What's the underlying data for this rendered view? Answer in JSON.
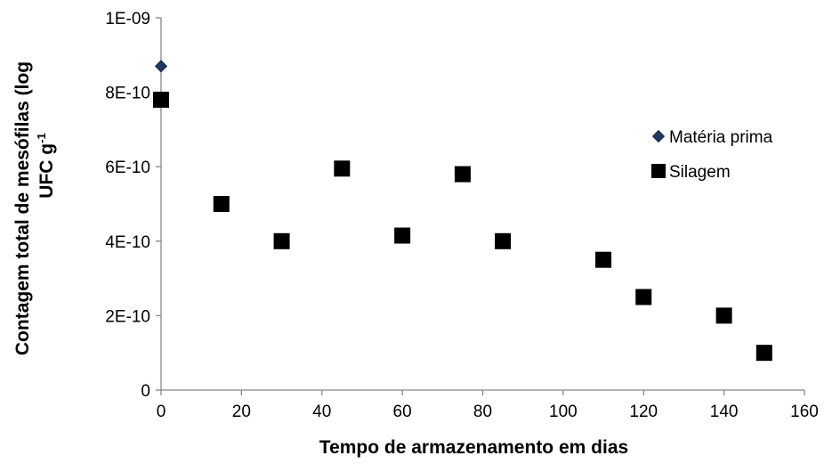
{
  "chart_data": {
    "type": "scatter",
    "xlabel": "Tempo de armazenamento em dias",
    "ylabel": {
      "line1": "Contagem total de mesófilas (log",
      "line2_base": "UFC g",
      "line2_sup": "-1"
    },
    "xlim": [
      0,
      160
    ],
    "ylim": [
      0,
      1e-09
    ],
    "x_ticks": [
      {
        "value": 0,
        "label": "0"
      },
      {
        "value": 20,
        "label": "20"
      },
      {
        "value": 40,
        "label": "40"
      },
      {
        "value": 60,
        "label": "60"
      },
      {
        "value": 80,
        "label": "80"
      },
      {
        "value": 100,
        "label": "100"
      },
      {
        "value": 120,
        "label": "120"
      },
      {
        "value": 140,
        "label": "140"
      },
      {
        "value": 160,
        "label": "160"
      }
    ],
    "y_ticks": [
      {
        "value": 0,
        "label": "0"
      },
      {
        "value": 2e-10,
        "label": "2E-10"
      },
      {
        "value": 4e-10,
        "label": "4E-10"
      },
      {
        "value": 6e-10,
        "label": "6E-10"
      },
      {
        "value": 8e-10,
        "label": "8E-10"
      },
      {
        "value": 1e-09,
        "label": "1E-09"
      }
    ],
    "grid": false,
    "legend_position": "right",
    "series": [
      {
        "name": "Matéria prima",
        "marker": "diamond",
        "color": "#1f3864",
        "points": [
          {
            "x": 0,
            "y": 8.7e-10
          }
        ]
      },
      {
        "name": "Silagem",
        "marker": "square",
        "color": "#000000",
        "points": [
          {
            "x": 0,
            "y": 7.8e-10
          },
          {
            "x": 15,
            "y": 5e-10
          },
          {
            "x": 30,
            "y": 4e-10
          },
          {
            "x": 45,
            "y": 5.95e-10
          },
          {
            "x": 60,
            "y": 4.15e-10
          },
          {
            "x": 75,
            "y": 5.8e-10
          },
          {
            "x": 85,
            "y": 4e-10
          },
          {
            "x": 110,
            "y": 3.5e-10
          },
          {
            "x": 120,
            "y": 2.5e-10
          },
          {
            "x": 140,
            "y": 2e-10
          },
          {
            "x": 150,
            "y": 1e-10
          }
        ]
      }
    ]
  }
}
